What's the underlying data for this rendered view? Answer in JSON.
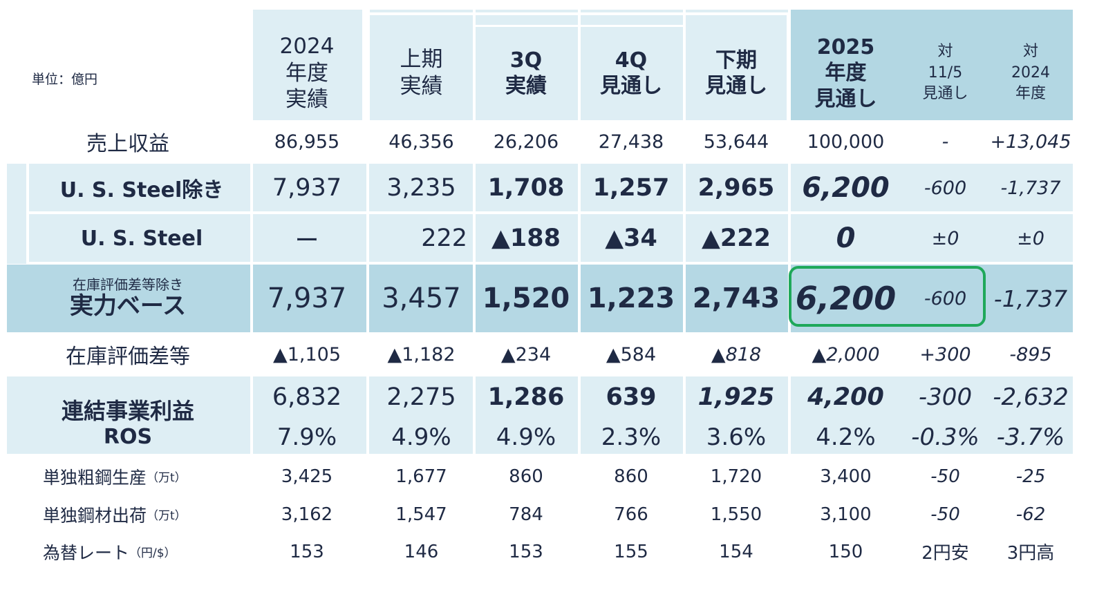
{
  "unit_label": "単位：億円",
  "columns": [
    {
      "key": "fy2024",
      "header": "2024\n年度\n実績",
      "style": "reg"
    },
    {
      "key": "h1",
      "header": "上期\n実績",
      "style": "reg"
    },
    {
      "key": "q3",
      "header": "3Q\n実績",
      "style": "bold"
    },
    {
      "key": "q4",
      "header": "4Q\n見通し",
      "style": "bold"
    },
    {
      "key": "h2",
      "header": "下期\n見通し",
      "style": "bold"
    },
    {
      "key": "fy2025",
      "header": "2025\n年度\n見通し",
      "style": "bold"
    },
    {
      "key": "vs115",
      "header": "対\n11/5\n見通し",
      "style": "small"
    },
    {
      "key": "vs2024",
      "header": "対\n2024\n年度",
      "style": "small"
    }
  ],
  "rows": {
    "sales": {
      "label": "売上収益",
      "values": [
        "86,955",
        "46,356",
        "26,206",
        "27,438",
        "53,644",
        "100,000",
        "-",
        "+13,045"
      ]
    },
    "ex_uss": {
      "label": "U. S. Steel除き",
      "values": [
        "7,937",
        "3,235",
        "1,708",
        "1,257",
        "2,965",
        "6,200",
        "-600",
        "-1,737"
      ]
    },
    "uss": {
      "label": "U. S. Steel",
      "values": [
        "ー",
        "222",
        "▲188",
        "▲34",
        "▲222",
        "0",
        "±0",
        "±0"
      ]
    },
    "underlying": {
      "label_small": "在庫評価差等除き",
      "label": "実力ベース",
      "values": [
        "7,937",
        "3,457",
        "1,520",
        "1,223",
        "2,743",
        "6,200",
        "-600",
        "-1,737"
      ]
    },
    "inventory": {
      "label": "在庫評価差等",
      "values": [
        "▲1,105",
        "▲1,182",
        "▲234",
        "▲584",
        "▲818",
        "▲2,000",
        "+300",
        "-895"
      ]
    },
    "business_profit": {
      "label": "連結事業利益",
      "values": [
        "6,832",
        "2,275",
        "1,286",
        "639",
        "1,925",
        "4,200",
        "-300",
        "-2,632"
      ]
    },
    "ros": {
      "label": "ROS",
      "values": [
        "7.9%",
        "4.9%",
        "4.9%",
        "2.3%",
        "3.6%",
        "4.2%",
        "-0.3%",
        "-3.7%"
      ]
    },
    "crude_steel": {
      "label": "単独粗鋼生産",
      "unit": "（万t）",
      "values": [
        "3,425",
        "1,677",
        "860",
        "860",
        "1,720",
        "3,400",
        "-50",
        "-25"
      ]
    },
    "steel_shipments": {
      "label": "単独鋼材出荷",
      "unit": "（万t）",
      "values": [
        "3,162",
        "1,547",
        "784",
        "766",
        "1,550",
        "3,100",
        "-50",
        "-62"
      ]
    },
    "fx": {
      "label": "為替レート",
      "unit": "（円/$）",
      "values": [
        "153",
        "146",
        "153",
        "155",
        "154",
        "150",
        "2円安",
        "3円高"
      ]
    }
  },
  "colors": {
    "light": "#deeef4",
    "mid": "#cfe5ee",
    "dark": "#b5d8e4",
    "header_dark": "#b3d7e3",
    "highlight_border": "#1fa85a",
    "text": "#1f2a44"
  }
}
